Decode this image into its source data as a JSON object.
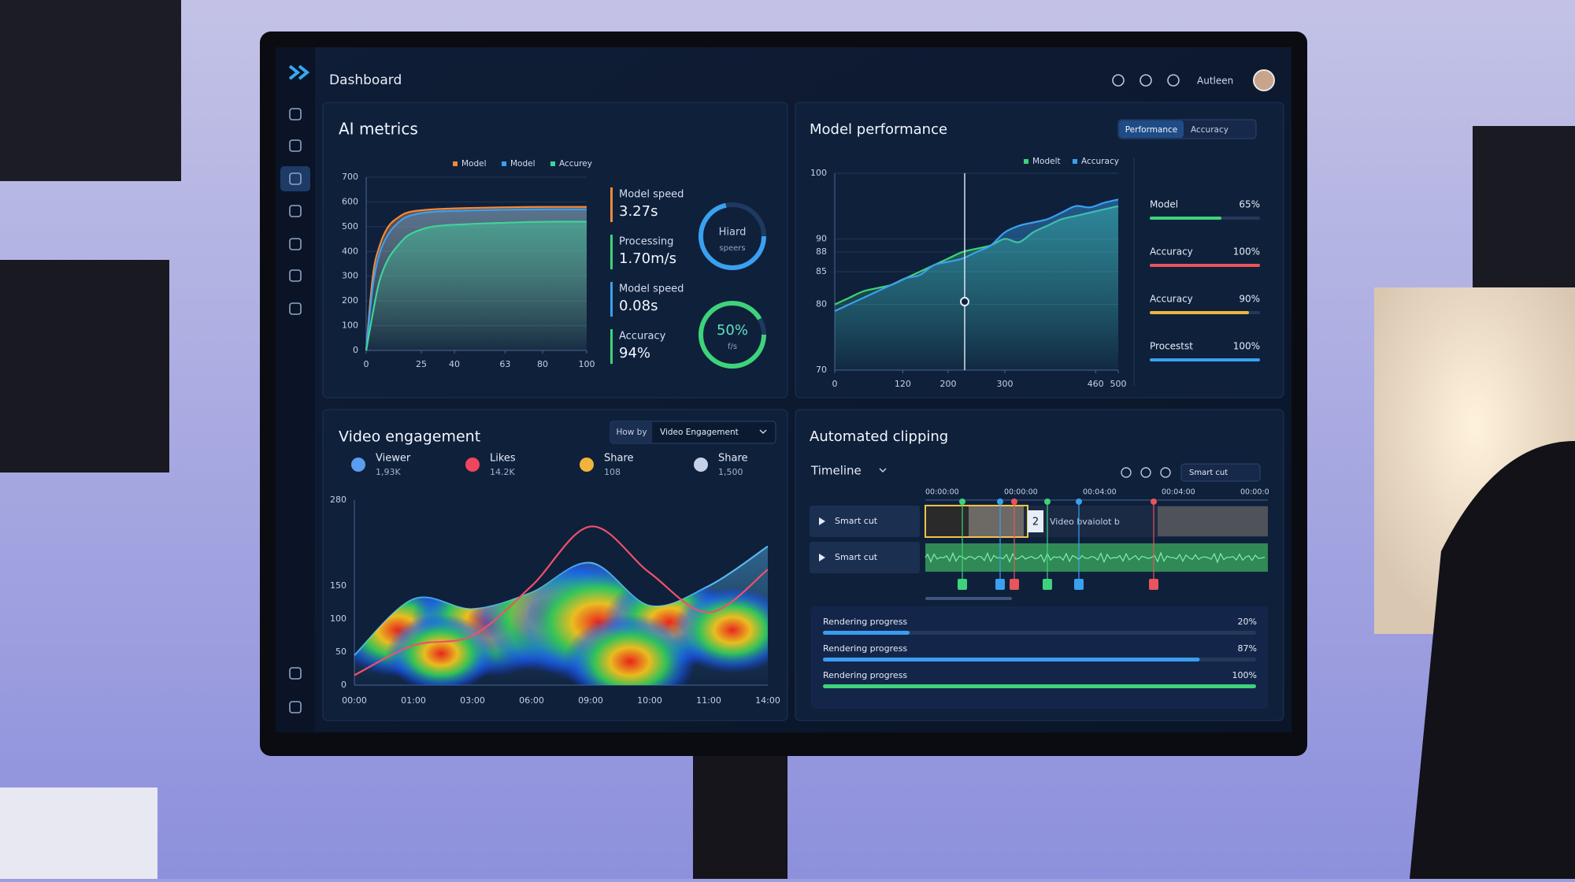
{
  "header": {
    "title": "Dashboard",
    "user": "Autleen"
  },
  "ai_metrics": {
    "title": "AI metrics",
    "stats": [
      {
        "label": "Model speed",
        "value": "3.27s"
      },
      {
        "label": "Processing",
        "value": "1.70m/s"
      },
      {
        "label": "Model speed",
        "value": "0.08s"
      },
      {
        "label": "Accuracy",
        "value": "94%"
      }
    ],
    "gauges": [
      {
        "label": "Hiard",
        "sub": "speers"
      },
      {
        "label": "50%",
        "sub": "f/s"
      }
    ]
  },
  "model_performance": {
    "title": "Model performance",
    "tabs": [
      "Performance",
      "Accuracy"
    ],
    "metrics": {
      "names": [
        "Model",
        "Accuracy",
        "Accuracy",
        "Procestst"
      ],
      "values": [
        65,
        100,
        90,
        100
      ],
      "value_labels": [
        "65%",
        "100%",
        "90%",
        "100%"
      ],
      "colors": [
        "#3ed37a",
        "#e8555a",
        "#f0b43c",
        "#3aa0f0"
      ],
      "xlim": [
        0,
        100
      ]
    }
  },
  "video_engagement": {
    "title": "Video engagement",
    "filter": {
      "label": "How by",
      "value": "Video Engagement"
    },
    "stats": [
      {
        "label": "Viewer",
        "value": "1,93K"
      },
      {
        "label": "Likes",
        "value": "14.2K"
      },
      {
        "label": "Share",
        "value": "108"
      },
      {
        "label": "Share",
        "value": "1,500"
      }
    ]
  },
  "automated_clipping": {
    "title": "Automated clipping",
    "timeline": "Timeline",
    "mode": "Smart cut",
    "timecodes": [
      "00:00:00",
      "00:00:00",
      "00:04:00",
      "00:04:00",
      "00:00:0"
    ],
    "tracks": [
      "Smart cut",
      "Smart cut"
    ],
    "clip_number": "2",
    "clip_label": "Video bvaiolot b",
    "progress": {
      "labels": [
        "Rendering progress",
        "Rendering progress",
        "Rendering progress"
      ],
      "values": [
        20,
        87,
        100
      ],
      "value_labels": [
        "20%",
        "87%",
        "100%"
      ],
      "colors": [
        "#3a9df0",
        "#3a9df0",
        "#3ed37a"
      ],
      "xlim": [
        0,
        100
      ]
    }
  },
  "chart_data": [
    {
      "type": "area",
      "x": [
        0,
        3,
        6,
        10,
        15,
        20,
        30,
        45,
        60,
        80,
        100
      ],
      "xlim": [
        0,
        100
      ],
      "xticks": [
        0,
        25,
        40,
        63,
        80,
        100
      ],
      "ylim": [
        0,
        700
      ],
      "yticks": [
        0,
        100,
        200,
        300,
        400,
        500,
        600,
        700
      ],
      "grid": true,
      "series": [
        {
          "name": "Model",
          "color": "#f08a3c",
          "area": true,
          "values": [
            0,
            300,
            420,
            500,
            540,
            560,
            570,
            575,
            578,
            580,
            580
          ]
        },
        {
          "name": "Model",
          "color": "#3aa0f0",
          "area": true,
          "values": [
            0,
            260,
            390,
            470,
            520,
            545,
            560,
            565,
            568,
            570,
            570
          ]
        },
        {
          "name": "Accurey",
          "color": "#3ed39a",
          "area": true,
          "values": [
            0,
            150,
            280,
            370,
            430,
            470,
            500,
            510,
            515,
            520,
            520
          ]
        }
      ]
    },
    {
      "type": "area",
      "categories": [
        "00:00",
        "01:00",
        "03:00",
        "06:00",
        "09:00",
        "10:00",
        "11:00",
        "14:00"
      ],
      "ylim": [
        0,
        280
      ],
      "yticks": [
        0,
        50,
        100,
        150,
        280
      ],
      "grid": false,
      "series": [
        {
          "color": "#58b8f0",
          "area": true,
          "values": [
            45,
            130,
            115,
            140,
            185,
            120,
            150,
            210
          ]
        },
        {
          "color": "#f0506a",
          "area": false,
          "values": [
            15,
            60,
            75,
            150,
            240,
            170,
            110,
            175
          ]
        }
      ]
    },
    {
      "type": "area",
      "x": [
        0,
        25,
        50,
        75,
        100,
        125,
        150,
        175,
        200,
        225,
        250,
        275,
        300,
        325,
        350,
        375,
        400,
        425,
        450,
        475,
        500
      ],
      "xlim": [
        0,
        500
      ],
      "xticks": [
        0,
        120,
        200,
        300,
        460,
        500
      ],
      "ylim": [
        70,
        100
      ],
      "yticks": [
        70,
        80,
        85,
        88,
        90,
        100
      ],
      "grid": true,
      "series": [
        {
          "name": "Modelt",
          "color": "#3ed37a",
          "area": true,
          "values": [
            80,
            81,
            82,
            82.5,
            83,
            84,
            85,
            86,
            87,
            88,
            88.5,
            89,
            90,
            89.5,
            91,
            92,
            93,
            93.5,
            94,
            94.5,
            95
          ]
        },
        {
          "name": "Accuracy",
          "color": "#3aa0f0",
          "area": true,
          "values": [
            79,
            80,
            81,
            82,
            83,
            84,
            84.5,
            86,
            86.5,
            87,
            88,
            89,
            91,
            92,
            92.5,
            93,
            94,
            95,
            94.8,
            95.5,
            96
          ]
        }
      ]
    }
  ]
}
